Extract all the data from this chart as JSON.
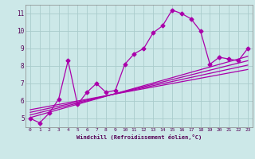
{
  "x": [
    0,
    1,
    2,
    3,
    4,
    5,
    6,
    7,
    8,
    9,
    10,
    11,
    12,
    13,
    14,
    15,
    16,
    17,
    18,
    19,
    20,
    21,
    22,
    23
  ],
  "y_main": [
    5.0,
    4.75,
    5.3,
    6.1,
    8.3,
    5.8,
    6.5,
    7.0,
    6.5,
    6.6,
    8.1,
    8.7,
    9.0,
    9.9,
    10.3,
    11.2,
    11.0,
    10.7,
    10.0,
    8.1,
    8.5,
    8.4,
    8.3,
    9.0
  ],
  "lines": [
    {
      "x0": 0,
      "y0": 5.05,
      "x1": 23,
      "y1": 8.55
    },
    {
      "x0": 0,
      "y0": 5.2,
      "x1": 23,
      "y1": 8.3
    },
    {
      "x0": 0,
      "y0": 5.35,
      "x1": 23,
      "y1": 8.05
    },
    {
      "x0": 0,
      "y0": 5.5,
      "x1": 23,
      "y1": 7.8
    }
  ],
  "color": "#aa00aa",
  "bg_color": "#cce8e8",
  "grid_color": "#aacccc",
  "xlabel": "Windchill (Refroidissement éolien,°C)",
  "xlim": [
    -0.5,
    23.5
  ],
  "ylim": [
    4.5,
    11.5
  ],
  "yticks": [
    5,
    6,
    7,
    8,
    9,
    10,
    11
  ],
  "xticks": [
    0,
    1,
    2,
    3,
    4,
    5,
    6,
    7,
    8,
    9,
    10,
    11,
    12,
    13,
    14,
    15,
    16,
    17,
    18,
    19,
    20,
    21,
    22,
    23
  ],
  "marker": "D",
  "markersize": 2.5,
  "linewidth": 0.9
}
